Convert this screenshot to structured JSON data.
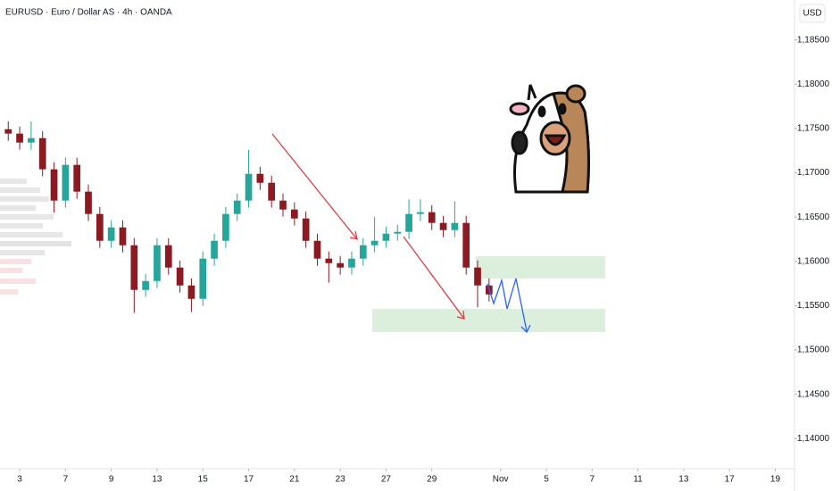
{
  "chart_data": {
    "type": "candlestick",
    "title": "EURUSD · Euro / Dollar AS · 4h · OANDA",
    "currency": "USD",
    "x": [
      -0.5,
      0,
      0.5,
      1,
      1.5,
      2,
      2.5,
      3,
      3.5,
      4,
      4.5,
      5,
      5.5,
      6,
      6.5,
      7,
      7.5,
      8,
      8.5,
      9,
      9.5,
      10,
      10.5,
      11,
      11.5,
      12,
      12.5,
      13,
      13.5,
      14,
      14.5,
      15,
      15.5,
      16,
      16.5,
      17,
      17.5,
      18,
      18.5,
      19,
      19.5,
      20,
      20.5
    ],
    "open": [
      1.17492,
      1.17442,
      1.17341,
      1.17391,
      1.17039,
      1.16686,
      1.17089,
      1.16787,
      1.16535,
      1.16232,
      1.16383,
      1.16182,
      1.15678,
      1.15778,
      1.16182,
      1.1593,
      1.15728,
      1.15577,
      1.16031,
      1.16232,
      1.16535,
      1.16686,
      1.16988,
      1.16887,
      1.16686,
      1.16585,
      1.16484,
      1.16232,
      1.16031,
      1.1598,
      1.1593,
      1.16031,
      1.16182,
      1.16232,
      1.16313,
      1.16333,
      1.16535,
      1.16555,
      1.16434,
      1.16353,
      1.16434,
      1.1593,
      1.15728
    ],
    "high": [
      1.1758,
      1.17522,
      1.1758,
      1.17471,
      1.17119,
      1.17169,
      1.17169,
      1.16867,
      1.16615,
      1.16463,
      1.16463,
      1.16262,
      1.15858,
      1.16262,
      1.16262,
      1.1601,
      1.15808,
      1.16111,
      1.16312,
      1.16615,
      1.16766,
      1.1726,
      1.17068,
      1.16967,
      1.16766,
      1.16665,
      1.16564,
      1.16312,
      1.16111,
      1.1606,
      1.16111,
      1.16262,
      1.165,
      1.16393,
      1.16413,
      1.167,
      1.167,
      1.16635,
      1.16514,
      1.1668,
      1.16514,
      1.1601,
      1.15808
    ],
    "low": [
      1.17362,
      1.17261,
      1.17261,
      1.16959,
      1.1655,
      1.16606,
      1.16707,
      1.16455,
      1.16152,
      1.16152,
      1.16102,
      1.1542,
      1.15598,
      1.15698,
      1.1585,
      1.15648,
      1.1543,
      1.15497,
      1.15951,
      1.16152,
      1.16455,
      1.16606,
      1.16807,
      1.16606,
      1.16505,
      1.16404,
      1.16152,
      1.15951,
      1.1576,
      1.1585,
      1.1585,
      1.15951,
      1.16102,
      1.16152,
      1.16233,
      1.16253,
      1.16455,
      1.16354,
      1.16273,
      1.16273,
      1.1585,
      1.1548,
      1.15547
    ],
    "close": [
      1.17442,
      1.17341,
      1.17391,
      1.17039,
      1.16686,
      1.17089,
      1.16787,
      1.16535,
      1.16232,
      1.16383,
      1.16182,
      1.15678,
      1.15778,
      1.16182,
      1.1593,
      1.15728,
      1.15577,
      1.16031,
      1.16232,
      1.16535,
      1.16686,
      1.16988,
      1.16887,
      1.16686,
      1.16585,
      1.16484,
      1.16232,
      1.16031,
      1.1598,
      1.1593,
      1.16031,
      1.16182,
      1.16232,
      1.16313,
      1.16333,
      1.16535,
      1.16555,
      1.16434,
      1.16353,
      1.16434,
      1.1593,
      1.15728,
      1.15627
    ],
    "up_color": "#26a69a",
    "down_color": "#8b1a22",
    "xlim": [
      -0.86,
      33.84
    ],
    "xticks": [
      {
        "value": 0,
        "label": "3"
      },
      {
        "value": 2,
        "label": "7"
      },
      {
        "value": 4,
        "label": "9"
      },
      {
        "value": 6,
        "label": "13"
      },
      {
        "value": 8,
        "label": "15"
      },
      {
        "value": 10,
        "label": "17"
      },
      {
        "value": 12,
        "label": "21"
      },
      {
        "value": 14,
        "label": "23"
      },
      {
        "value": 16,
        "label": "27"
      },
      {
        "value": 18,
        "label": "29"
      },
      {
        "value": 21,
        "label": "Nov"
      },
      {
        "value": 23,
        "label": "5"
      },
      {
        "value": 25,
        "label": "7"
      },
      {
        "value": 27,
        "label": "11"
      },
      {
        "value": 29,
        "label": "13"
      },
      {
        "value": 31,
        "label": "17"
      },
      {
        "value": 33,
        "label": "19"
      }
    ],
    "ylim": [
      1.1366,
      1.1895
    ],
    "yticks": [
      {
        "value": 1.14,
        "label": "1,14000"
      },
      {
        "value": 1.145,
        "label": "1,14500"
      },
      {
        "value": 1.15,
        "label": "1,15000"
      },
      {
        "value": 1.155,
        "label": "1,15500"
      },
      {
        "value": 1.16,
        "label": "1,16000"
      },
      {
        "value": 1.165,
        "label": "1,16500"
      },
      {
        "value": 1.17,
        "label": "1,17000"
      },
      {
        "value": 1.175,
        "label": "1,17500"
      },
      {
        "value": 1.18,
        "label": "1,18000"
      },
      {
        "value": 1.185,
        "label": "1,18500"
      }
    ],
    "grid": false
  }
}
